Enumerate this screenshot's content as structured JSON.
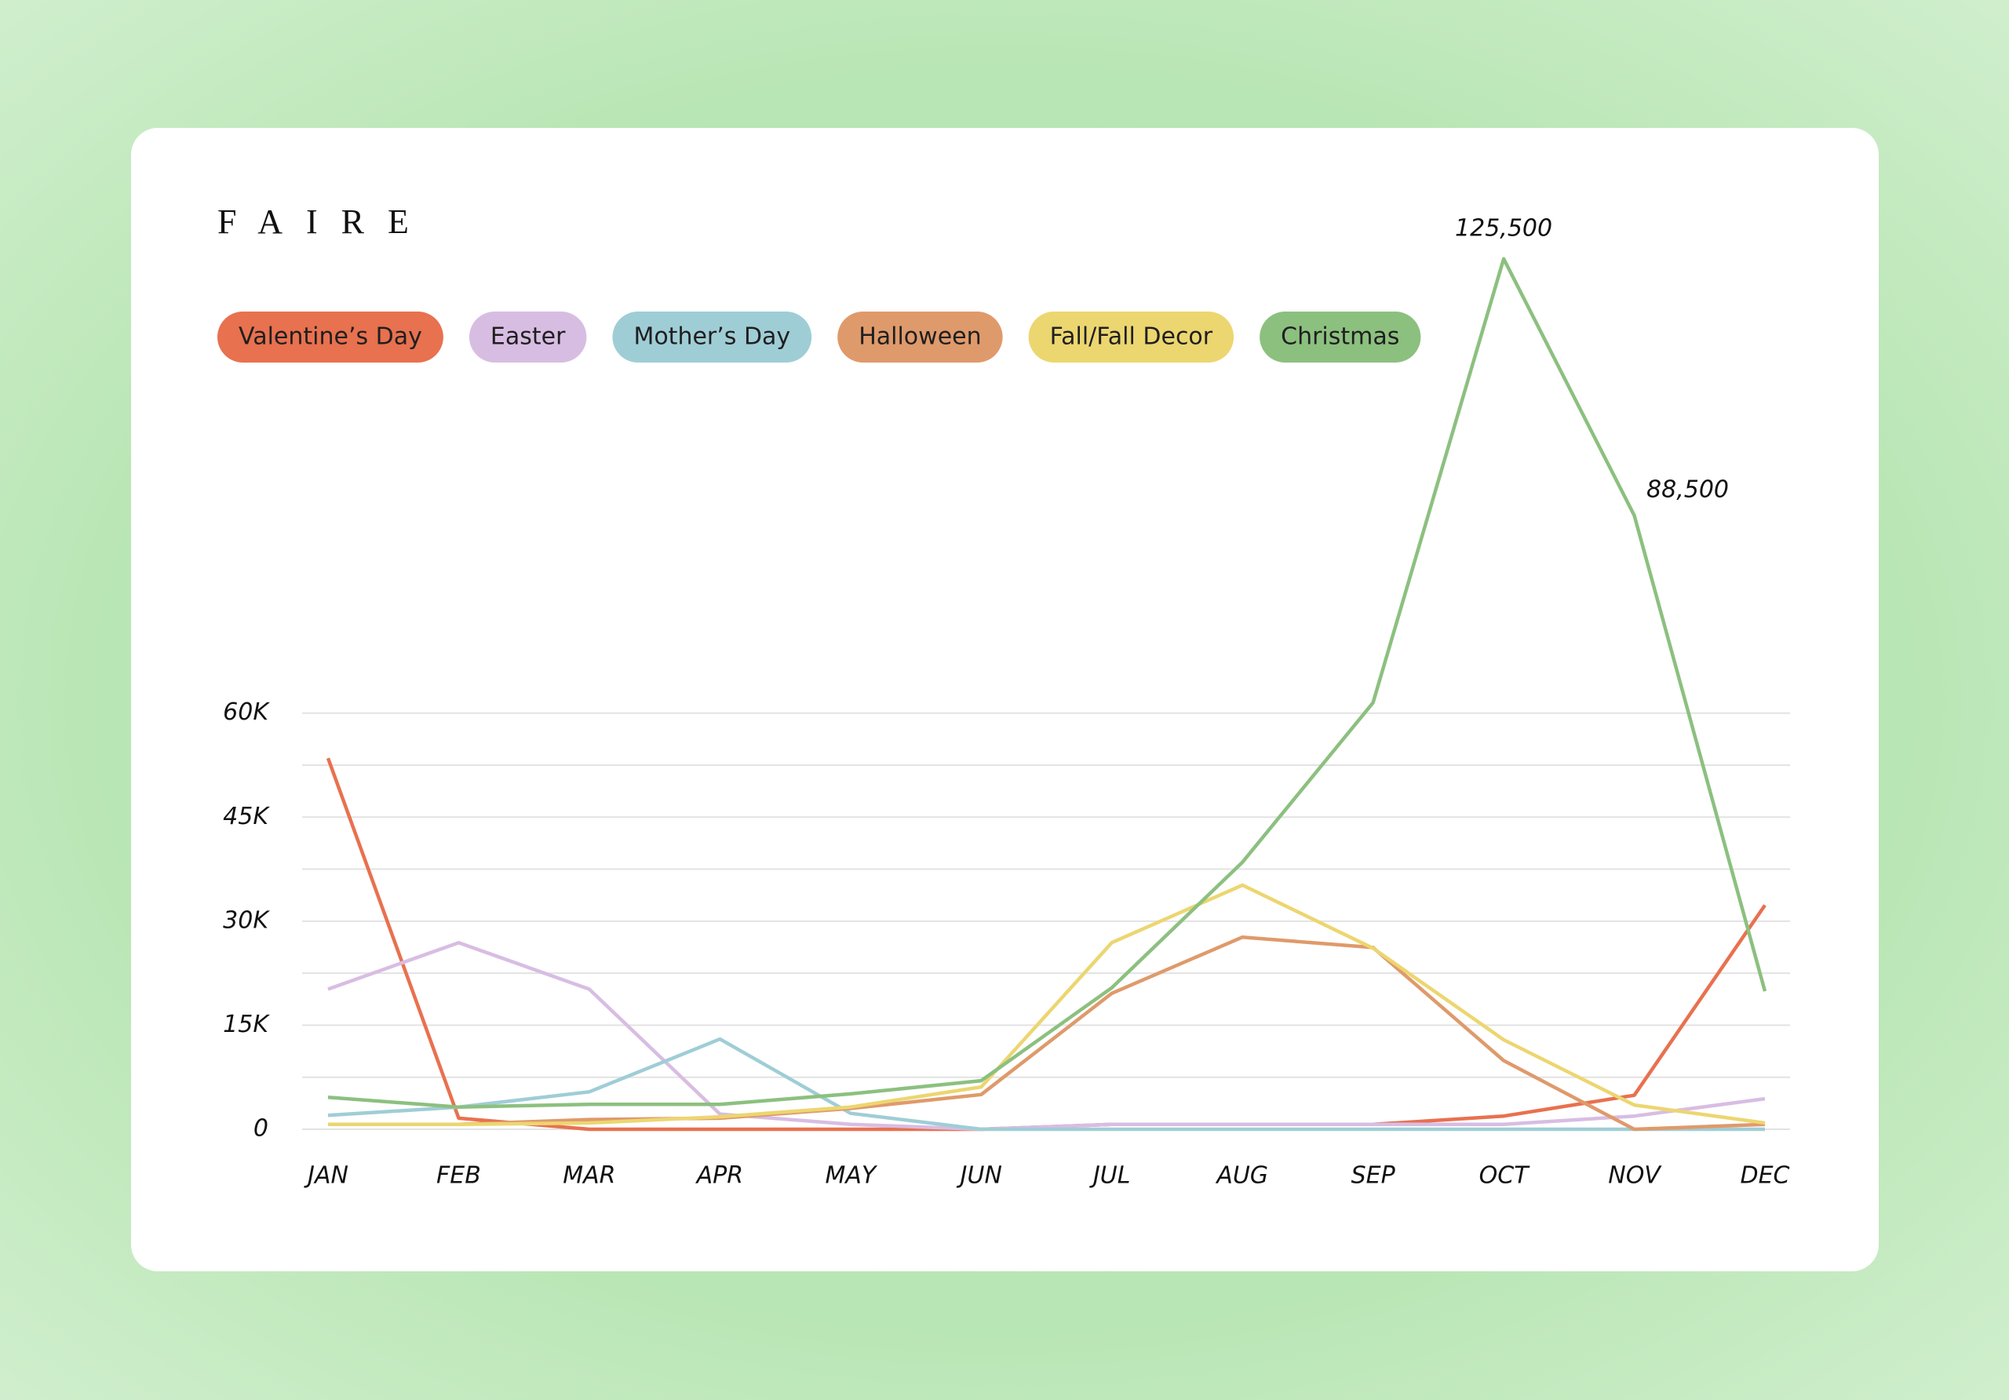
{
  "chart_data": {
    "type": "line",
    "brand": "FAIRE",
    "categories": [
      "JAN",
      "FEB",
      "MAR",
      "APR",
      "MAY",
      "JUN",
      "JUL",
      "AUG",
      "SEP",
      "OCT",
      "NOV",
      "DEC"
    ],
    "ylim": [
      0,
      130000
    ],
    "yticks": [
      {
        "value": 0,
        "label": "0"
      },
      {
        "value": 7500
      },
      {
        "value": 15000,
        "label": "15K"
      },
      {
        "value": 22500
      },
      {
        "value": 30000,
        "label": "30K"
      },
      {
        "value": 37500
      },
      {
        "value": 45000,
        "label": "45K"
      },
      {
        "value": 52500
      },
      {
        "value": 60000,
        "label": "60K"
      }
    ],
    "grid": true,
    "legend": "top-left",
    "series": [
      {
        "name": "Valentine’s Day",
        "color": "#e8714f",
        "values": [
          53500,
          1600,
          0,
          0,
          0,
          0,
          700,
          700,
          700,
          1900,
          4900,
          32300
        ]
      },
      {
        "name": "Easter",
        "color": "#d8bde3",
        "values": [
          20200,
          26900,
          20200,
          2200,
          700,
          0,
          700,
          700,
          700,
          700,
          1900,
          4400
        ]
      },
      {
        "name": "Mother’s Day",
        "color": "#9fcdd6",
        "values": [
          2000,
          3200,
          5400,
          13000,
          2300,
          0,
          0,
          0,
          0,
          0,
          0,
          0
        ]
      },
      {
        "name": "Halloween",
        "color": "#df9a6b",
        "values": [
          700,
          700,
          1400,
          1600,
          3000,
          5000,
          19600,
          27700,
          26200,
          9900,
          0,
          700
        ]
      },
      {
        "name": "Fall/Fall Decor",
        "color": "#ecd670",
        "values": [
          700,
          700,
          900,
          1800,
          3200,
          6100,
          26900,
          35200,
          26100,
          12900,
          3500,
          900
        ]
      },
      {
        "name": "Christmas",
        "color": "#8cc07f",
        "values": [
          4600,
          3200,
          3600,
          3600,
          5100,
          7000,
          20400,
          38500,
          61500,
          125500,
          88500,
          19900
        ],
        "value_labels": [
          null,
          null,
          null,
          null,
          null,
          null,
          null,
          null,
          null,
          "125,500",
          "88,500",
          null
        ]
      }
    ]
  }
}
